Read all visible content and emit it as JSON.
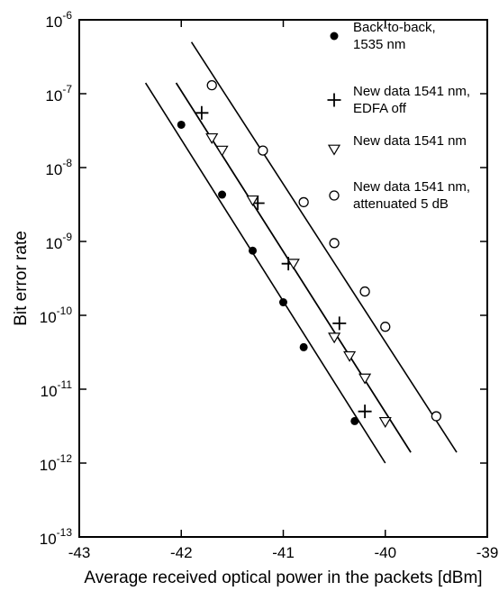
{
  "chart_data": {
    "type": "scatter",
    "xlabel": "Average received optical power in the packets [dBm]",
    "ylabel": "Bit error rate",
    "x_scale": "linear",
    "y_scale": "log",
    "xlim": [
      -43,
      -39
    ],
    "ylim": [
      1e-13,
      1e-06
    ],
    "x_ticks": [
      {
        "value": -43,
        "label": "-43"
      },
      {
        "value": -42,
        "label": "-42"
      },
      {
        "value": -41,
        "label": "-41"
      },
      {
        "value": -40,
        "label": "-40"
      },
      {
        "value": -39,
        "label": "-39"
      }
    ],
    "y_ticks": [
      {
        "value": 1e-06,
        "base": "10",
        "exp": "-6"
      },
      {
        "value": 1e-07,
        "base": "10",
        "exp": "-7"
      },
      {
        "value": 1e-08,
        "base": "10",
        "exp": "-8"
      },
      {
        "value": 1e-09,
        "base": "10",
        "exp": "-9"
      },
      {
        "value": 1e-10,
        "base": "10",
        "exp": "-10"
      },
      {
        "value": 1e-11,
        "base": "10",
        "exp": "-11"
      },
      {
        "value": 1e-12,
        "base": "10",
        "exp": "-12"
      },
      {
        "value": 1e-13,
        "base": "10",
        "exp": "-13"
      }
    ],
    "grid": false,
    "legend_position": "top-right",
    "series": [
      {
        "name": "Back-to-back, 1535 nm",
        "legend_lines": [
          "Back-to-back,",
          "1535 nm"
        ],
        "marker": "filled-circle",
        "points": [
          {
            "x": -42.0,
            "y": 3.8e-08
          },
          {
            "x": -41.6,
            "y": 4.3e-09
          },
          {
            "x": -41.3,
            "y": 7.5e-10
          },
          {
            "x": -41.0,
            "y": 1.5e-10
          },
          {
            "x": -40.8,
            "y": 3.7e-11
          },
          {
            "x": -40.3,
            "y": 3.7e-12
          }
        ],
        "fit": [
          {
            "x": -42.35,
            "y": 1.4e-07
          },
          {
            "x": -40.0,
            "y": 1e-12
          }
        ]
      },
      {
        "name": "New data 1541 nm, EDFA off",
        "legend_lines": [
          "New data 1541 nm,",
          "EDFA off"
        ],
        "marker": "plus",
        "points": [
          {
            "x": -41.8,
            "y": 5.5e-08
          },
          {
            "x": -41.25,
            "y": 3.3e-09
          },
          {
            "x": -40.95,
            "y": 5e-10
          },
          {
            "x": -40.45,
            "y": 7.8e-11
          },
          {
            "x": -40.2,
            "y": 5e-12
          }
        ],
        "fit": [
          {
            "x": -42.05,
            "y": 1.4e-07
          },
          {
            "x": -39.75,
            "y": 1.4e-12
          }
        ]
      },
      {
        "name": "New data 1541 nm",
        "legend_lines": [
          "New data 1541 nm"
        ],
        "marker": "open-triangle-down",
        "points": [
          {
            "x": -41.7,
            "y": 2.5e-08
          },
          {
            "x": -41.6,
            "y": 1.7e-08
          },
          {
            "x": -41.3,
            "y": 3.6e-09
          },
          {
            "x": -40.9,
            "y": 5e-10
          },
          {
            "x": -40.5,
            "y": 5e-11
          },
          {
            "x": -40.35,
            "y": 2.8e-11
          },
          {
            "x": -40.2,
            "y": 1.4e-11
          },
          {
            "x": -40.0,
            "y": 3.6e-12
          }
        ],
        "fit": [
          {
            "x": -42.05,
            "y": 1.4e-07
          },
          {
            "x": -39.75,
            "y": 1.4e-12
          }
        ]
      },
      {
        "name": "New data 1541 nm, attenuated 5 dB",
        "legend_lines": [
          "New data 1541 nm,",
          "attenuated 5 dB"
        ],
        "marker": "open-circle",
        "points": [
          {
            "x": -41.7,
            "y": 1.3e-07
          },
          {
            "x": -41.2,
            "y": 1.7e-08
          },
          {
            "x": -40.8,
            "y": 3.4e-09
          },
          {
            "x": -40.5,
            "y": 9.5e-10
          },
          {
            "x": -40.2,
            "y": 2.1e-10
          },
          {
            "x": -40.0,
            "y": 7e-11
          },
          {
            "x": -39.5,
            "y": 4.3e-12
          }
        ],
        "fit": [
          {
            "x": -41.9,
            "y": 5e-07
          },
          {
            "x": -39.3,
            "y": 1.4e-12
          }
        ]
      }
    ]
  }
}
